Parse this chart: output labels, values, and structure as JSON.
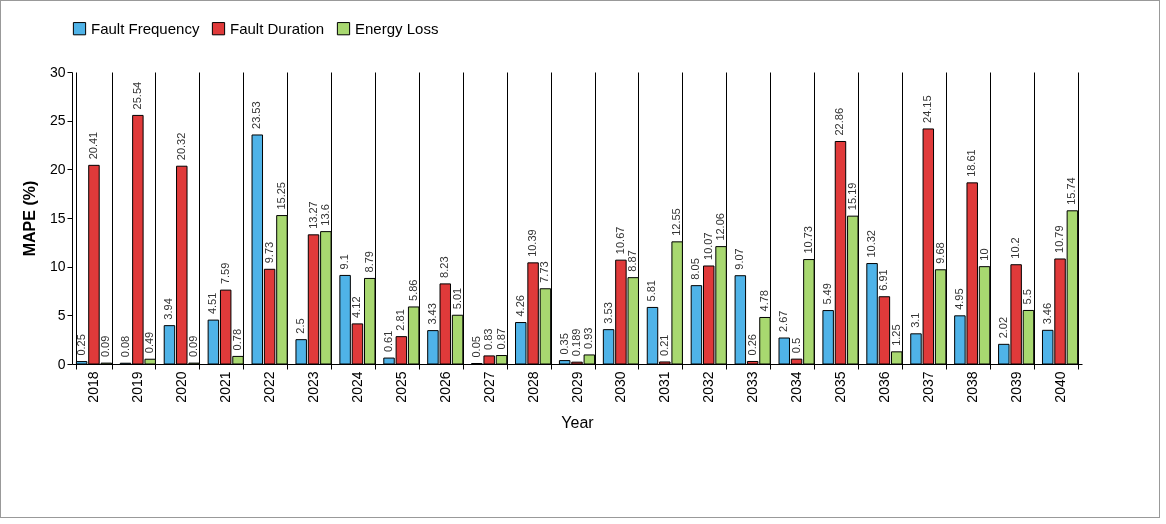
{
  "chart_data": {
    "type": "bar",
    "xlabel": "Year",
    "ylabel": "MAPE (%)",
    "categories": [
      "2018",
      "2019",
      "2020",
      "2021",
      "2022",
      "2023",
      "2024",
      "2025",
      "2026",
      "2027",
      "2028",
      "2029",
      "2030",
      "2031",
      "2032",
      "2033",
      "2034",
      "2035",
      "2036",
      "2037",
      "2038",
      "2039",
      "2040"
    ],
    "series": [
      {
        "name": "Fault Frequency",
        "color": "#4fb3e8",
        "values": [
          0.25,
          0.08,
          3.94,
          4.51,
          23.53,
          2.5,
          9.1,
          0.61,
          3.43,
          0.05,
          4.26,
          0.35,
          3.53,
          5.81,
          8.05,
          9.07,
          2.67,
          5.49,
          10.32,
          3.1,
          4.95,
          2.02,
          3.46
        ]
      },
      {
        "name": "Fault Duration",
        "color": "#e03a3a",
        "values": [
          20.41,
          25.54,
          20.32,
          7.59,
          9.73,
          13.27,
          4.12,
          2.81,
          8.23,
          0.83,
          10.39,
          0.189,
          10.67,
          0.21,
          10.07,
          0.26,
          0.5,
          22.86,
          6.91,
          24.15,
          18.61,
          10.2,
          10.79
        ]
      },
      {
        "name": "Energy Loss",
        "color": "#a8d870",
        "values": [
          0.09,
          0.49,
          0.09,
          0.78,
          15.25,
          13.6,
          8.79,
          5.86,
          5.01,
          0.87,
          7.73,
          0.93,
          8.87,
          12.55,
          12.06,
          4.78,
          10.73,
          15.19,
          1.25,
          9.68,
          10,
          5.5,
          15.74
        ]
      }
    ],
    "ylim": [
      0,
      30
    ],
    "yticks": [
      0,
      5,
      10,
      15,
      20,
      25,
      30
    ],
    "grid": "x",
    "legend": "top",
    "data_labels": true
  }
}
